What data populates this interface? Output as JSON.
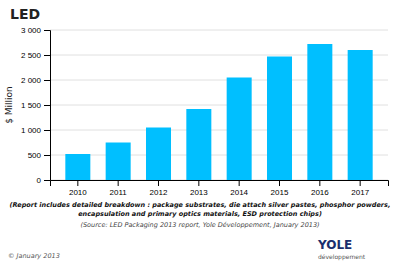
{
  "chart_data": {
    "type": "bar",
    "title": "LED",
    "ylabel": "$ Million",
    "categories": [
      "2010",
      "2011",
      "2012",
      "2013",
      "2014",
      "2015",
      "2016",
      "2017"
    ],
    "values": [
      520,
      750,
      1050,
      1420,
      2050,
      2470,
      2720,
      2600
    ],
    "color": "#00BFFF",
    "ylim": [
      0,
      3000
    ],
    "yticks": [
      0,
      500,
      {
        "value": 1000,
        "label": "1 000"
      },
      {
        "value": 1500,
        "label": "1 500"
      },
      {
        "value": 2000,
        "label": "2 000"
      },
      {
        "value": 2500,
        "label": "2 500"
      },
      {
        "value": 3000,
        "label": "3 000"
      }
    ],
    "grid": true,
    "annotations": [
      "(Report includes detailed breakdown : package substrates, die attach silver pastes, phosphor powders,",
      "encapsulation and primary optics materials, ESD protection chips)",
      "(Source: LED Packaging 2013 report, Yole Développement, January 2013)",
      "© January 2013",
      "YOLE",
      "développement"
    ]
  }
}
